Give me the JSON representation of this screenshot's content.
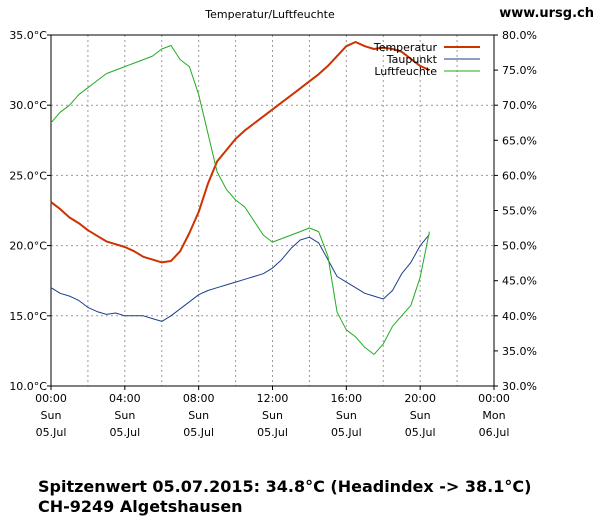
{
  "site": "www.ursg.ch",
  "footer": {
    "line1": "Spitzenwert 05.07.2015: 34.8°C (Headindex -> 38.1°C)",
    "line2": "CH-9249 Algetshausen"
  },
  "chart_data": {
    "type": "line",
    "title": "Temperatur/Luftfeuchte",
    "x_unit": "hours since 05.07 00:00",
    "xlim": [
      0,
      24
    ],
    "x_ticks": [
      {
        "x": 0,
        "time": "00:00",
        "day": "Sun",
        "date": "05.Jul"
      },
      {
        "x": 4,
        "time": "04:00",
        "day": "Sun",
        "date": "05.Jul"
      },
      {
        "x": 8,
        "time": "08:00",
        "day": "Sun",
        "date": "05.Jul"
      },
      {
        "x": 12,
        "time": "12:00",
        "day": "Sun",
        "date": "05.Jul"
      },
      {
        "x": 16,
        "time": "16:00",
        "day": "Sun",
        "date": "05.Jul"
      },
      {
        "x": 20,
        "time": "20:00",
        "day": "Sun",
        "date": "05.Jul"
      },
      {
        "x": 24,
        "time": "00:00",
        "day": "Mon",
        "date": "06.Jul"
      }
    ],
    "y_left": {
      "unit": "°C",
      "ylim": [
        10,
        35
      ],
      "ticks": [
        "10.0°C",
        "15.0°C",
        "20.0°C",
        "25.0°C",
        "30.0°C",
        "35.0°C"
      ]
    },
    "y_right": {
      "unit": "%",
      "ylim": [
        30,
        80
      ],
      "ticks": [
        "30.0%",
        "35.0%",
        "40.0%",
        "45.0%",
        "50.0%",
        "55.0%",
        "60.0%",
        "65.0%",
        "70.0%",
        "75.0%",
        "80.0%"
      ]
    },
    "grid": true,
    "legend_position": "top-right",
    "series": [
      {
        "name": "Temperatur",
        "axis": "left",
        "color": "#cc3300",
        "width": 2,
        "x": [
          0,
          0.5,
          1,
          1.5,
          2,
          2.5,
          3,
          3.5,
          4,
          4.5,
          5,
          5.5,
          6,
          6.5,
          7,
          7.5,
          8,
          8.5,
          9,
          9.5,
          10,
          10.5,
          11,
          11.5,
          12,
          12.5,
          13,
          13.5,
          14,
          14.5,
          15,
          15.5,
          16,
          16.5,
          17,
          17.5,
          18,
          18.5,
          19,
          19.5,
          20,
          20.5
        ],
        "values": [
          23.1,
          22.6,
          22.0,
          21.6,
          21.1,
          20.7,
          20.3,
          20.1,
          19.9,
          19.6,
          19.2,
          19.0,
          18.8,
          18.9,
          19.6,
          20.9,
          22.4,
          24.4,
          26.0,
          26.8,
          27.6,
          28.2,
          28.7,
          29.2,
          29.7,
          30.2,
          30.7,
          31.2,
          31.7,
          32.2,
          32.8,
          33.5,
          34.2,
          34.5,
          34.2,
          34.0,
          34.1,
          34.0,
          33.8,
          33.3,
          32.8,
          32.5
        ]
      },
      {
        "name": "Taupunkt",
        "axis": "left",
        "color": "#1c3f8c",
        "width": 1,
        "x": [
          0,
          0.5,
          1,
          1.5,
          2,
          2.5,
          3,
          3.5,
          4,
          4.5,
          5,
          5.5,
          6,
          6.5,
          7,
          7.5,
          8,
          8.5,
          9,
          9.5,
          10,
          10.5,
          11,
          11.5,
          12,
          12.5,
          13,
          13.5,
          14,
          14.5,
          15,
          15.5,
          16,
          16.5,
          17,
          17.5,
          18,
          18.5,
          19,
          19.5,
          20,
          20.5
        ],
        "values": [
          17.0,
          16.6,
          16.4,
          16.1,
          15.6,
          15.3,
          15.1,
          15.2,
          15.0,
          15.0,
          15.0,
          14.8,
          14.6,
          15.0,
          15.5,
          16.0,
          16.5,
          16.8,
          17.0,
          17.2,
          17.4,
          17.6,
          17.8,
          18.0,
          18.4,
          19.0,
          19.8,
          20.4,
          20.6,
          20.2,
          19.0,
          17.8,
          17.4,
          17.0,
          16.6,
          16.4,
          16.2,
          16.8,
          18.0,
          18.8,
          20.0,
          20.8
        ]
      },
      {
        "name": "Luftfeuchte",
        "axis": "right",
        "color": "#22aa22",
        "width": 1,
        "x": [
          0,
          0.5,
          1,
          1.5,
          2,
          2.5,
          3,
          3.5,
          4,
          4.5,
          5,
          5.5,
          6,
          6.5,
          7,
          7.5,
          8,
          8.5,
          9,
          9.5,
          10,
          10.5,
          11,
          11.5,
          12,
          12.5,
          13,
          13.5,
          14,
          14.5,
          15,
          15.5,
          16,
          16.5,
          17,
          17.5,
          18,
          18.5,
          19,
          19.5,
          20,
          20.5
        ],
        "values": [
          67.5,
          69.0,
          70.0,
          71.5,
          72.5,
          73.5,
          74.5,
          75.0,
          75.5,
          76.0,
          76.5,
          77.0,
          78.0,
          78.5,
          76.5,
          75.5,
          71.5,
          66.0,
          60.5,
          58.0,
          56.5,
          55.5,
          53.5,
          51.5,
          50.5,
          51.0,
          51.5,
          52.0,
          52.5,
          52.0,
          48.5,
          40.5,
          38.0,
          37.0,
          35.5,
          34.5,
          36.0,
          38.5,
          40.0,
          41.5,
          45.5,
          52.0
        ]
      }
    ]
  }
}
